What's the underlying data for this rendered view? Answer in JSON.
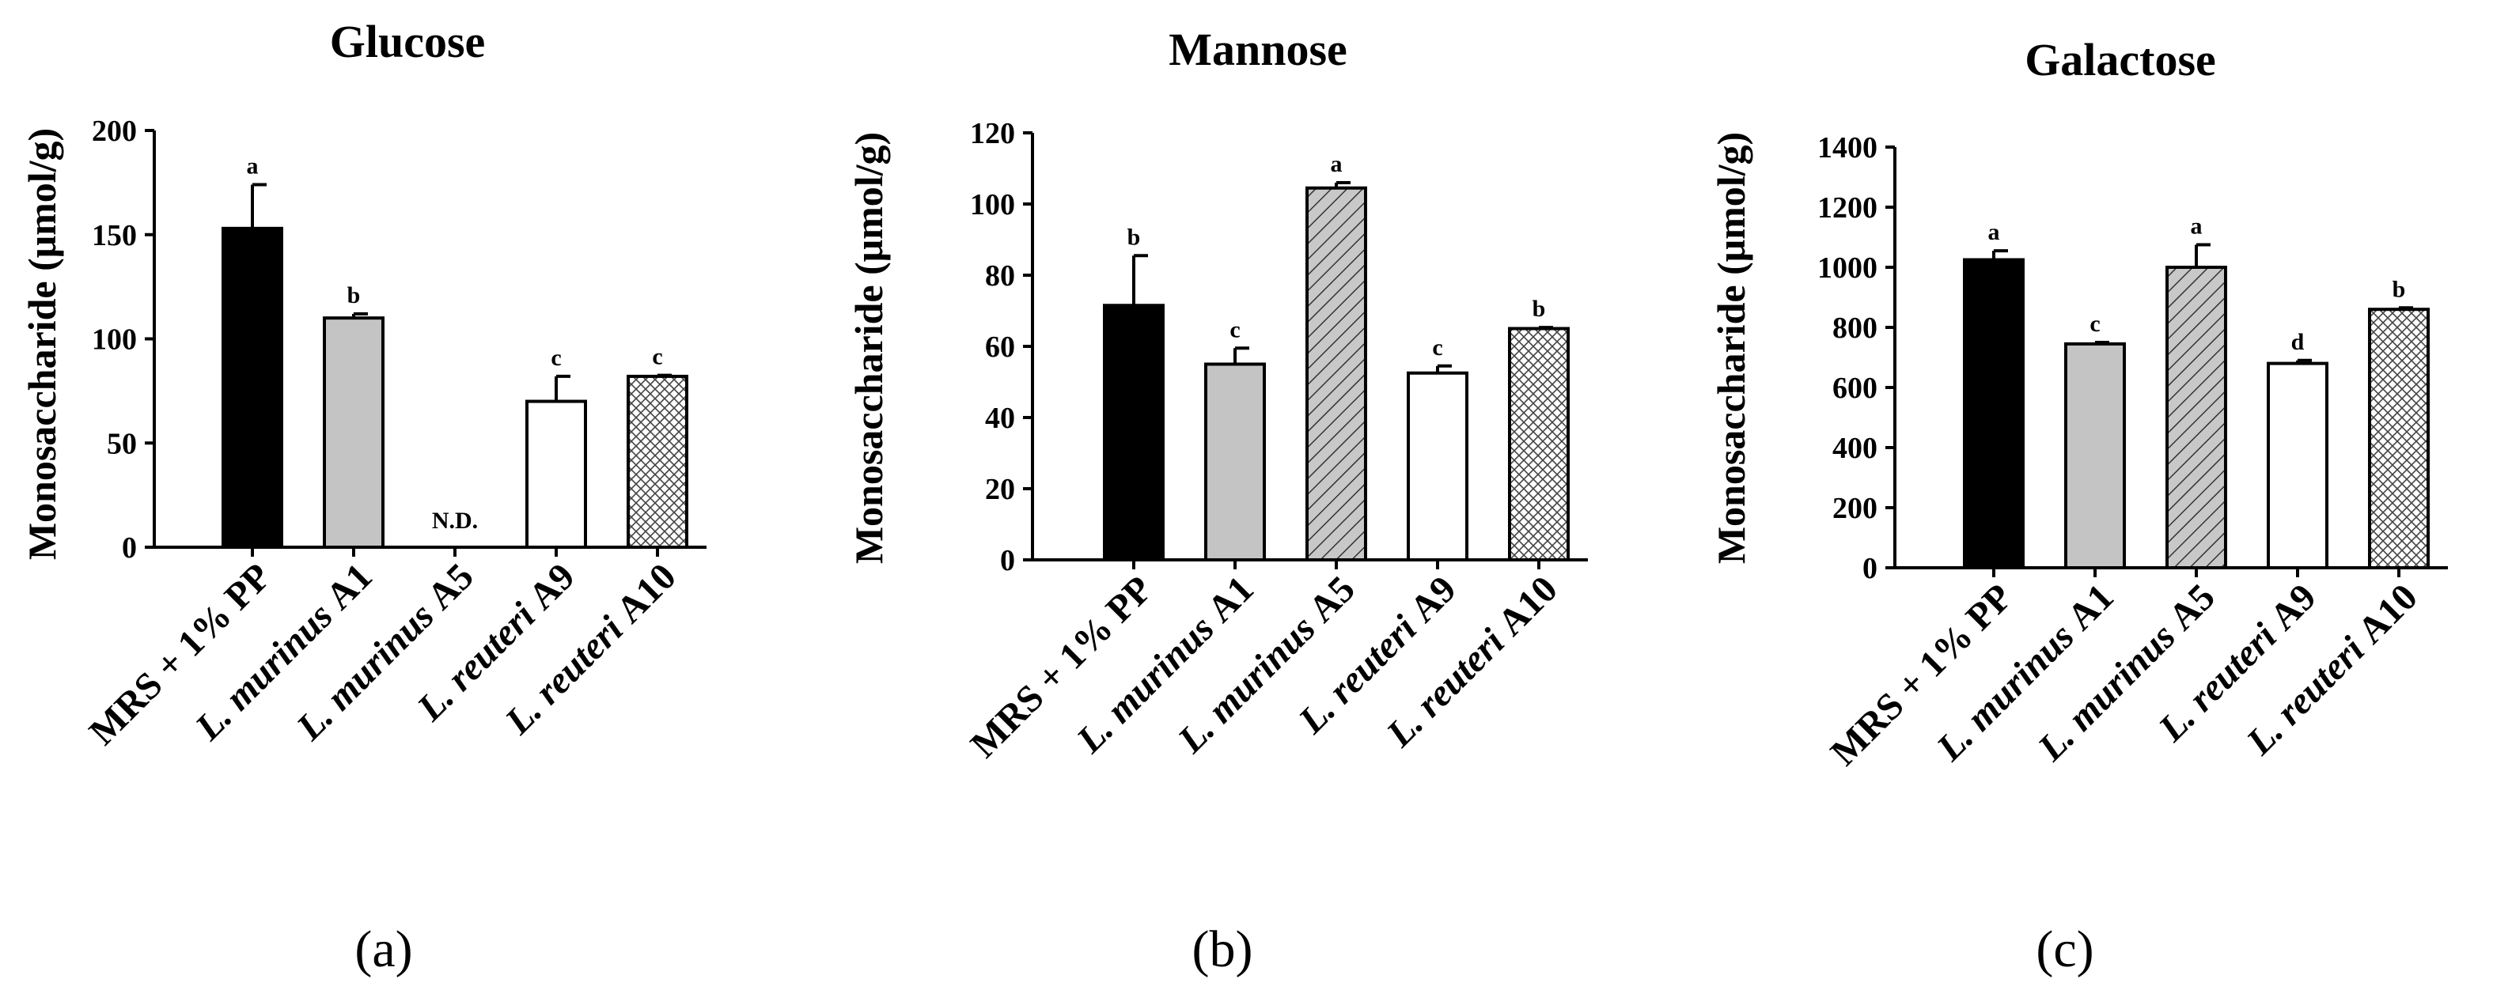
{
  "figure": {
    "panel_labels": [
      "(a)",
      "(b)",
      "(c)"
    ]
  },
  "chart_data": [
    {
      "type": "bar",
      "title": "Glucose",
      "ylabel": "Monosaccharide (μmol/g)",
      "ylim": [
        0,
        200
      ],
      "yticks": [
        0,
        50,
        100,
        150,
        200
      ],
      "categories": [
        {
          "prefix": "MRS + 1% PP",
          "italic": "",
          "suffix": ""
        },
        {
          "prefix": "",
          "italic": "L. murinus",
          "suffix": " A1"
        },
        {
          "prefix": "",
          "italic": "L. murinus",
          "suffix": " A5"
        },
        {
          "prefix": "",
          "italic": "L. reuteri",
          "suffix": " A9"
        },
        {
          "prefix": "",
          "italic": "L. reuteri",
          "suffix": " A10"
        }
      ],
      "values": [
        153,
        110,
        null,
        70,
        82
      ],
      "errors": [
        21,
        2,
        null,
        12,
        0.5
      ],
      "significance": [
        "a",
        "b",
        "",
        "c",
        "c"
      ],
      "not_detected_label": "N.D.",
      "fills": [
        "black",
        "gray",
        "hatch",
        "white",
        "crosshatch"
      ]
    },
    {
      "type": "bar",
      "title": "Mannose",
      "ylabel": "Monosaccharide (μmol/g)",
      "ylim": [
        0,
        120
      ],
      "yticks": [
        0,
        20,
        40,
        60,
        80,
        100,
        120
      ],
      "categories": [
        {
          "prefix": "MRS + 1% PP",
          "italic": "",
          "suffix": ""
        },
        {
          "prefix": "",
          "italic": "L. murinus",
          "suffix": " A1"
        },
        {
          "prefix": "",
          "italic": "L. murinus",
          "suffix": " A5"
        },
        {
          "prefix": "",
          "italic": "L. reuteri",
          "suffix": " A9"
        },
        {
          "prefix": "",
          "italic": "L. reuteri",
          "suffix": " A10"
        }
      ],
      "values": [
        71.5,
        55,
        104.5,
        52.5,
        65
      ],
      "errors": [
        14,
        4.5,
        1.5,
        2,
        0.3
      ],
      "significance": [
        "b",
        "c",
        "a",
        "c",
        "b"
      ],
      "fills": [
        "black",
        "gray",
        "hatch",
        "white",
        "crosshatch"
      ]
    },
    {
      "type": "bar",
      "title": "Galactose",
      "ylabel": "Monosaccharide (μmol/g)",
      "ylim": [
        0,
        1400
      ],
      "yticks": [
        0,
        200,
        400,
        600,
        800,
        1000,
        1200,
        1400
      ],
      "categories": [
        {
          "prefix": "MRS + 1% PP",
          "italic": "",
          "suffix": ""
        },
        {
          "prefix": "",
          "italic": "L. murinus",
          "suffix": " A1"
        },
        {
          "prefix": "",
          "italic": "L. murinus",
          "suffix": " A5"
        },
        {
          "prefix": "",
          "italic": "L. reuteri",
          "suffix": " A9"
        },
        {
          "prefix": "",
          "italic": "L. reuteri",
          "suffix": " A10"
        }
      ],
      "values": [
        1025,
        745,
        1000,
        680,
        860
      ],
      "errors": [
        30,
        5,
        75,
        10,
        5
      ],
      "significance": [
        "a",
        "c",
        "a",
        "d",
        "b"
      ],
      "fills": [
        "black",
        "gray",
        "hatch",
        "white",
        "crosshatch"
      ]
    }
  ]
}
